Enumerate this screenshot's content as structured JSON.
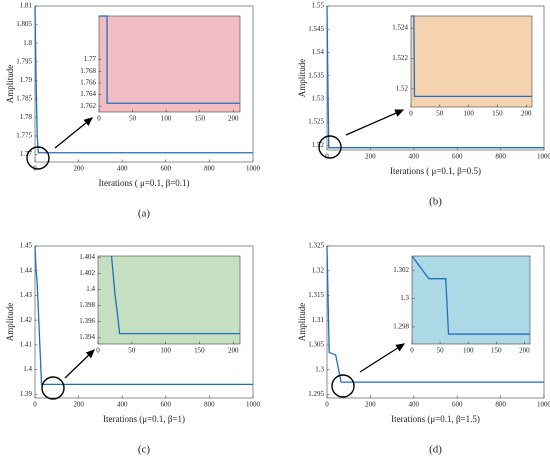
{
  "chart_data": [
    {
      "type": "line",
      "panel_label": "(a)",
      "xlabel": "Iterations ( μ=0.1, β=0.1)",
      "ylabel": "Amplitude",
      "color": "#1f6fbf",
      "xlim": [
        0,
        1000
      ],
      "xticks": [
        0,
        200,
        400,
        600,
        800,
        1000
      ],
      "ylim": [
        1.768,
        1.81
      ],
      "yticks": [
        1.77,
        1.775,
        1.78,
        1.785,
        1.79,
        1.795,
        1.8,
        1.805,
        1.81
      ],
      "x": [
        0,
        5,
        10,
        15,
        1000
      ],
      "values": [
        1.81,
        1.79,
        1.775,
        1.7705,
        1.7705
      ],
      "inset": {
        "background": "#f2bcc3",
        "xlim": [
          0,
          210
        ],
        "xticks": [
          0,
          50,
          100,
          150,
          200
        ],
        "ylim": [
          1.761,
          1.7775
        ],
        "yticks": [
          1.762,
          1.764,
          1.766,
          1.768,
          1.77
        ],
        "x": [
          0,
          12,
          12,
          210
        ],
        "values": [
          1.7775,
          1.7775,
          1.7625,
          1.7625
        ]
      }
    },
    {
      "type": "line",
      "panel_label": "(b)",
      "xlabel": "Iterations ( μ=0.1, β=0.5)",
      "ylabel": "Amplitude",
      "color": "#1f6fbf",
      "xlim": [
        0,
        1000
      ],
      "xticks": [
        0,
        200,
        400,
        600,
        800,
        1000
      ],
      "ylim": [
        1.519,
        1.55
      ],
      "yticks": [
        1.52,
        1.525,
        1.53,
        1.535,
        1.54,
        1.545,
        1.55
      ],
      "x": [
        0,
        5,
        8,
        1000
      ],
      "values": [
        1.55,
        1.53,
        1.5195,
        1.5195
      ],
      "inset": {
        "background": "#f6d3b0",
        "xlim": [
          0,
          210
        ],
        "xticks": [
          0,
          50,
          100,
          150,
          200
        ],
        "ylim": [
          1.5188,
          1.5248
        ],
        "yticks": [
          1.52,
          1.522,
          1.524
        ],
        "x": [
          0,
          5,
          6,
          210
        ],
        "values": [
          1.5248,
          1.5248,
          1.5195,
          1.5195
        ]
      }
    },
    {
      "type": "line",
      "panel_label": "(c)",
      "xlabel": "Iterations (μ=0.1, β=1)",
      "ylabel": "Amplitude",
      "color": "#1f6fbf",
      "xlim": [
        0,
        1000
      ],
      "xticks": [
        0,
        200,
        400,
        600,
        800,
        1000
      ],
      "ylim": [
        1.3885,
        1.45
      ],
      "yticks": [
        1.39,
        1.4,
        1.41,
        1.42,
        1.43,
        1.44,
        1.45
      ],
      "x": [
        0,
        5,
        10,
        30,
        1000
      ],
      "values": [
        1.45,
        1.44,
        1.435,
        1.394,
        1.394
      ],
      "inset": {
        "background": "#c5e0c0",
        "xlim": [
          0,
          210
        ],
        "xticks": [
          0,
          50,
          100,
          150,
          200
        ],
        "ylim": [
          1.3932,
          1.4042
        ],
        "yticks": [
          1.394,
          1.396,
          1.398,
          1.4,
          1.402,
          1.404
        ],
        "x": [
          20,
          25,
          28,
          32,
          210
        ],
        "values": [
          1.4042,
          1.3995,
          1.3975,
          1.3945,
          1.3945
        ]
      }
    },
    {
      "type": "line",
      "panel_label": "(d)",
      "xlabel": "Iterations (μ=0.1, β=1.5)",
      "ylabel": "Amplitude",
      "color": "#1f6fbf",
      "xlim": [
        0,
        1000
      ],
      "xticks": [
        0,
        200,
        400,
        600,
        800,
        1000
      ],
      "ylim": [
        1.2943,
        1.325
      ],
      "yticks": [
        1.295,
        1.3,
        1.305,
        1.31,
        1.315,
        1.32,
        1.325
      ],
      "x": [
        0,
        10,
        40,
        65,
        1000
      ],
      "values": [
        1.325,
        1.3035,
        1.303,
        1.2975,
        1.2975
      ],
      "inset": {
        "background": "#add8e6",
        "xlim": [
          0,
          210
        ],
        "xticks": [
          0,
          50,
          100,
          150,
          200
        ],
        "ylim": [
          1.2968,
          1.303
        ],
        "yticks": [
          1.298,
          1.3,
          1.302
        ],
        "x": [
          0,
          30,
          60,
          65,
          210
        ],
        "values": [
          1.303,
          1.3014,
          1.3014,
          1.2975,
          1.2975
        ]
      }
    }
  ]
}
